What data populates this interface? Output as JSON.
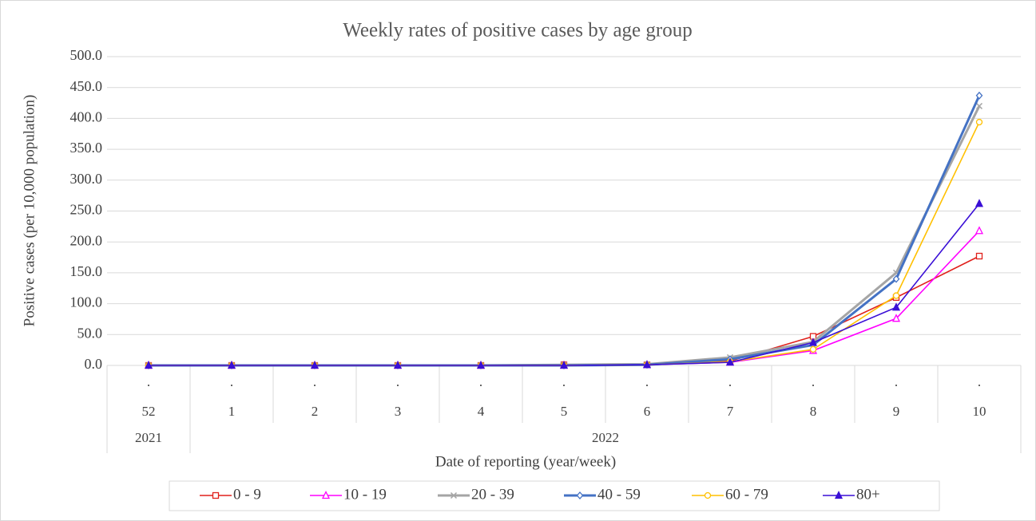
{
  "chart_data": {
    "type": "line",
    "title": "Weekly rates of positive cases by age group",
    "y_label": "Positive cases (per 10,000 population)",
    "x_label": "Date of reporting  (year/week)",
    "x_level1": [
      ".",
      ".",
      ".",
      ".",
      ".",
      ".",
      ".",
      ".",
      ".",
      ".",
      "."
    ],
    "categories": [
      "52",
      "1",
      "2",
      "3",
      "4",
      "5",
      "6",
      "7",
      "8",
      "9",
      "10"
    ],
    "x_groups": [
      {
        "label": "2021",
        "span": 1
      },
      {
        "label": "2022",
        "span": 10
      }
    ],
    "ylim": [
      0,
      500
    ],
    "yticks": [
      {
        "value": 0,
        "label": "0.0"
      },
      {
        "value": 50,
        "label": "50.0"
      },
      {
        "value": 100,
        "label": "100.0"
      },
      {
        "value": 150,
        "label": "150.0"
      },
      {
        "value": 200,
        "label": "200.0"
      },
      {
        "value": 250,
        "label": "250.0"
      },
      {
        "value": 300,
        "label": "300.0"
      },
      {
        "value": 350,
        "label": "350.0"
      },
      {
        "value": 400,
        "label": "400.0"
      },
      {
        "value": 450,
        "label": "450.0"
      },
      {
        "value": 500,
        "label": "500.0"
      }
    ],
    "grid": true,
    "legend": "bottom",
    "series": [
      {
        "name": "0 - 9",
        "color": "#e0201b",
        "marker": "square",
        "values": [
          0,
          0,
          0,
          0,
          0,
          1,
          1,
          7,
          47,
          110,
          177
        ]
      },
      {
        "name": "10 - 19",
        "color": "#ff00ff",
        "marker": "triangle",
        "values": [
          0,
          0,
          0,
          0,
          0,
          0,
          1,
          5,
          24,
          76,
          218
        ]
      },
      {
        "name": "20 - 39",
        "color": "#a5a5a5",
        "marker": "x",
        "values": [
          0,
          0,
          0,
          0,
          0,
          1,
          2,
          13,
          38,
          150,
          420
        ]
      },
      {
        "name": "40 - 59",
        "color": "#4472c4",
        "marker": "diamond",
        "values": [
          0,
          0,
          0,
          0,
          0,
          0,
          1,
          10,
          33,
          140,
          437
        ]
      },
      {
        "name": "60 - 79",
        "color": "#ffc000",
        "marker": "circle",
        "values": [
          0,
          0,
          0,
          0,
          0,
          0,
          1,
          6,
          26,
          113,
          394
        ]
      },
      {
        "name": "80+",
        "color": "#3a0fd6",
        "marker": "filled-triangle",
        "values": [
          0,
          0,
          0,
          0,
          0,
          0,
          1,
          5,
          37,
          94,
          262
        ]
      }
    ]
  }
}
